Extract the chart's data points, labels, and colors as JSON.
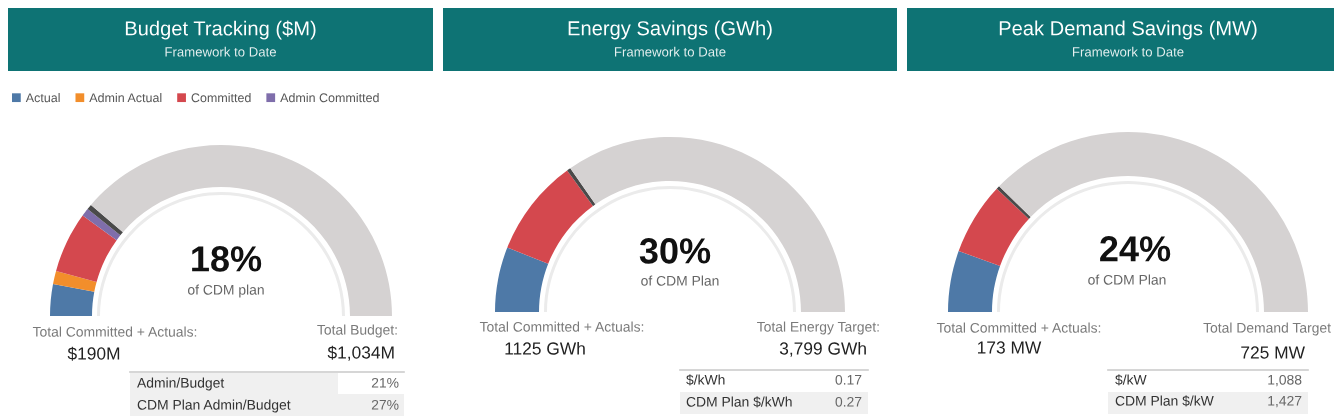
{
  "chart_data": [
    {
      "type": "donut",
      "title": "Budget Tracking ($M)",
      "subtitle": "Framework to Date",
      "legend": "top left",
      "categories": [
        "Actual",
        "Admin Actual",
        "Committed",
        "Admin Committed",
        null,
        null
      ],
      "values": [
        6,
        2.5,
        11.5,
        1.5,
        1,
        77.5
      ],
      "colors": [
        "#4e79a7",
        "#f28e2b",
        "#d4484e",
        "#7f6eab",
        "#4a4a4a",
        "#d5d2d2"
      ],
      "annotations": [
        "18%",
        "of CDM plan",
        "Total Committed + Actuals:",
        "$190M",
        "Total Budget:",
        "$1,034M",
        "Admin/Budget",
        "21%",
        "CDM Plan Admin/Budget",
        "27%"
      ]
    },
    {
      "type": "donut",
      "title": "Energy Savings (GWh)",
      "subtitle": "Framework to Date",
      "categories": [
        null,
        null,
        null,
        null
      ],
      "values": [
        12,
        18,
        0.7,
        69.3
      ],
      "colors": [
        "#4e79a7",
        "#d4484e",
        "#4a4a4a",
        "#d5d2d2"
      ],
      "annotations": [
        "30%",
        "of CDM Plan",
        "Total Committed + Actuals:",
        "1125 GWh",
        "Total Energy Target:",
        "3,799 GWh",
        "$/kWh",
        "0.17",
        "CDM Plan $/kWh",
        "0.27"
      ]
    },
    {
      "type": "donut",
      "title": "Peak Demand Savings (MW)",
      "subtitle": "Framework to Date",
      "categories": [
        null,
        null,
        null,
        null
      ],
      "values": [
        11,
        13,
        0.6,
        75.4
      ],
      "colors": [
        "#4e79a7",
        "#d4484e",
        "#4a4a4a",
        "#d5d2d2"
      ],
      "annotations": [
        "24%",
        "of CDM Plan",
        "Total Committed + Actuals:",
        "173 MW",
        "Total Demand Target",
        "725 MW",
        "$/kW",
        "1,088",
        "CDM Plan $/kW",
        "1,427"
      ]
    }
  ]
}
